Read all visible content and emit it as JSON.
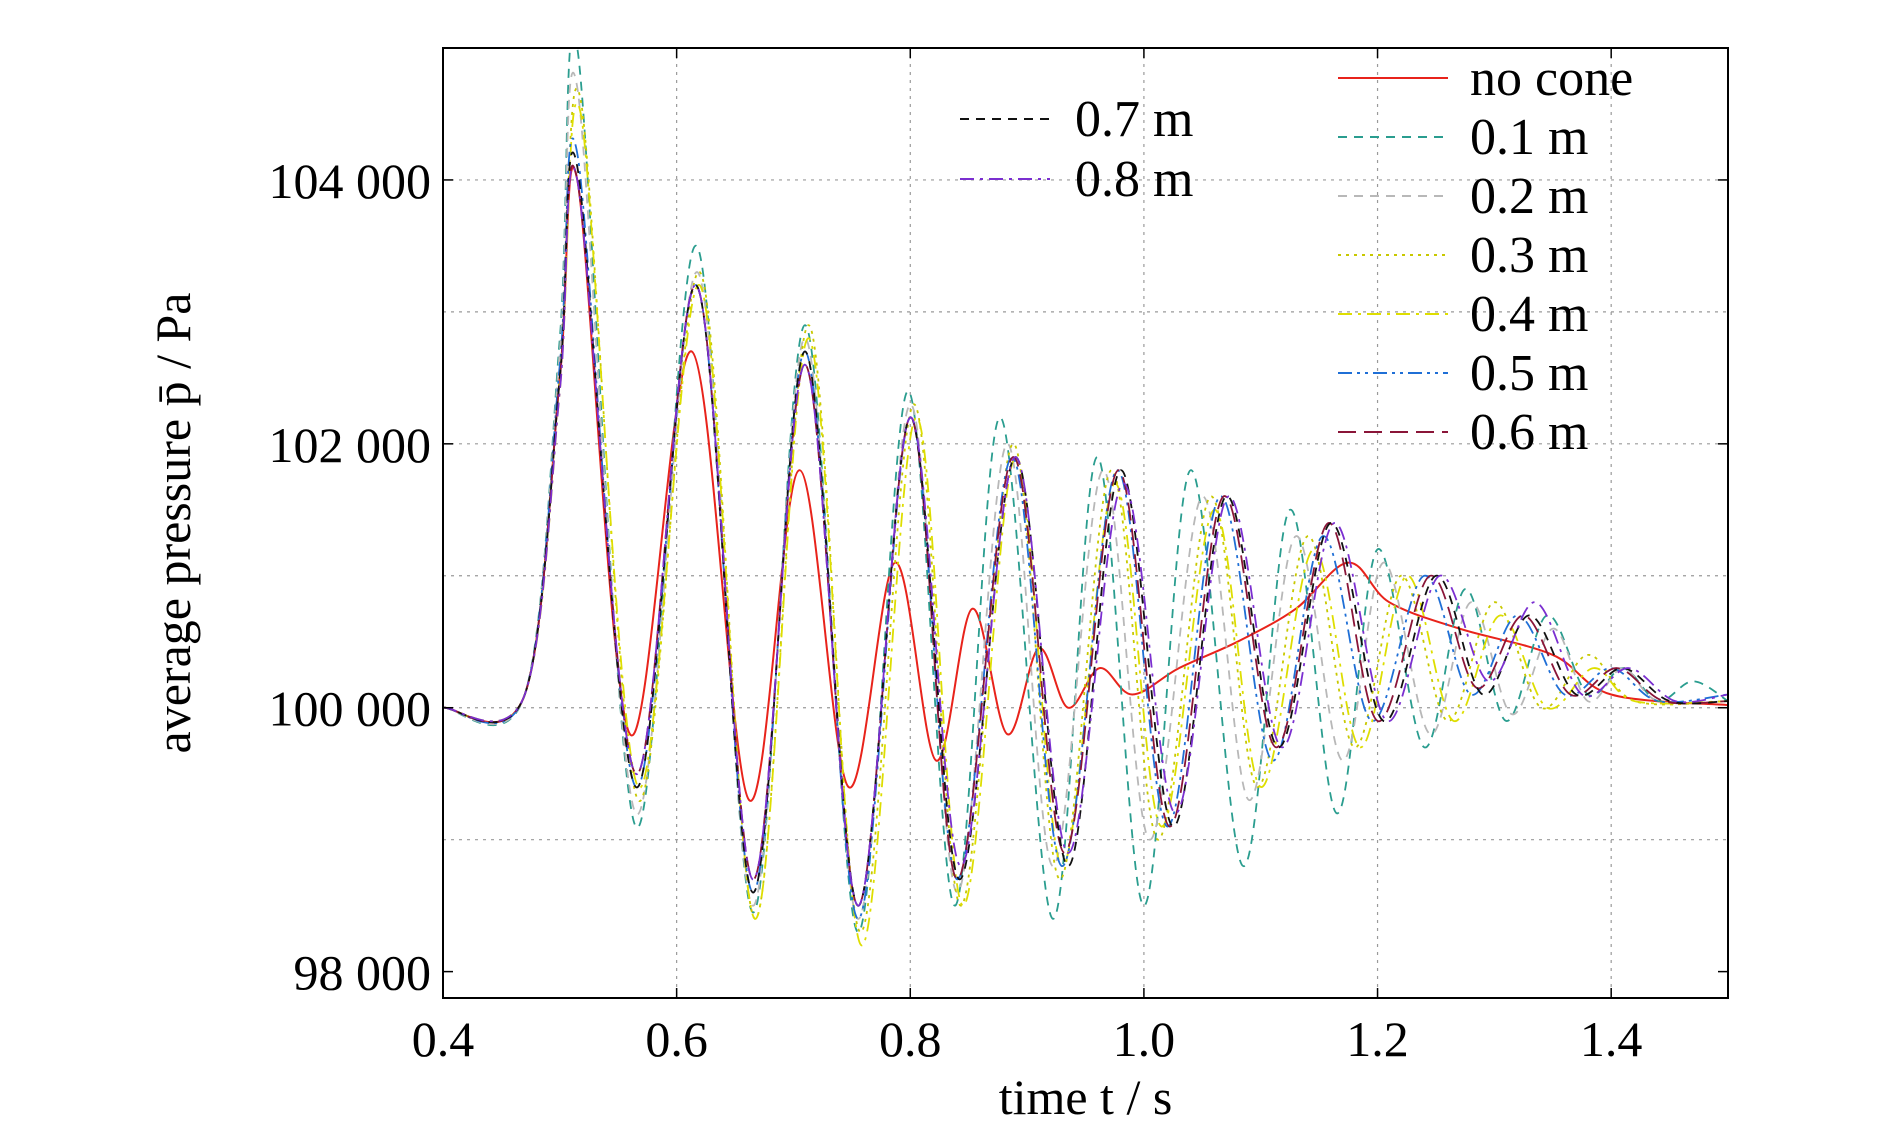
{
  "chart_data": {
    "type": "line",
    "title": "",
    "xlabel": "time t / s",
    "ylabel": "average pressure p̄ / Pa",
    "xlim": [
      0.4,
      1.5
    ],
    "ylim": [
      97800,
      105000
    ],
    "xticks": [
      0.4,
      0.6,
      0.8,
      1.0,
      1.2,
      1.4
    ],
    "xtick_labels": [
      "0.4",
      "0.6",
      "0.8",
      "1.0",
      "1.2",
      "1.4"
    ],
    "yticks": [
      98000,
      100000,
      102000,
      104000
    ],
    "ytick_labels": [
      "98 000",
      "100 000",
      "102 000",
      "104 000"
    ],
    "grid": true,
    "legend_placement": "top-right, two columns",
    "series": [
      {
        "name": "no cone",
        "color": "#e8231b",
        "dash": "solid",
        "x": [
          0.4,
          0.47,
          0.5,
          0.515,
          0.56,
          0.613,
          0.662,
          0.705,
          0.747,
          0.787,
          0.822,
          0.853,
          0.883,
          0.91,
          0.935,
          0.962,
          0.99,
          1.03,
          1.08,
          1.13,
          1.175,
          1.21,
          1.27,
          1.35,
          1.4,
          1.5
        ],
        "y": [
          100000,
          100100,
          102500,
          104000,
          99800,
          102700,
          99300,
          101800,
          99400,
          101100,
          99600,
          100750,
          99800,
          100450,
          100000,
          100300,
          100100,
          100300,
          100500,
          100750,
          101100,
          100800,
          100600,
          100400,
          100100,
          100020
        ]
      },
      {
        "name": "0.1 m",
        "color": "#2a9d8f",
        "dash": "short-dash",
        "x": [
          0.4,
          0.47,
          0.5,
          0.515,
          0.565,
          0.617,
          0.665,
          0.71,
          0.755,
          0.798,
          0.838,
          0.877,
          0.922,
          0.96,
          1.0,
          1.04,
          1.085,
          1.125,
          1.165,
          1.2,
          1.24,
          1.275,
          1.31,
          1.345,
          1.38,
          1.41,
          1.44,
          1.47,
          1.5
        ],
        "y": [
          100000,
          100100,
          102800,
          105000,
          99100,
          103500,
          98450,
          102900,
          98300,
          102400,
          98500,
          102200,
          98400,
          101900,
          98500,
          101800,
          98800,
          101500,
          99200,
          101200,
          99700,
          100900,
          99900,
          100700,
          100100,
          100300,
          100050,
          100200,
          100050
        ]
      },
      {
        "name": "0.2 m",
        "color": "#b8b8b8",
        "dash": "short-dash",
        "x": [
          0.4,
          0.47,
          0.5,
          0.515,
          0.565,
          0.618,
          0.665,
          0.71,
          0.755,
          0.8,
          0.84,
          0.883,
          0.922,
          0.965,
          1.005,
          1.05,
          1.09,
          1.13,
          1.17,
          1.205,
          1.245,
          1.28,
          1.315,
          1.35,
          1.38,
          1.41,
          1.44,
          1.5
        ],
        "y": [
          100000,
          100100,
          102700,
          104700,
          99200,
          103300,
          98500,
          102800,
          98400,
          102300,
          98600,
          102000,
          98800,
          101800,
          99000,
          101600,
          99300,
          101300,
          99600,
          101100,
          99800,
          100800,
          99950,
          100600,
          100050,
          100300,
          100050,
          100050
        ]
      },
      {
        "name": "0.3 m",
        "color": "#c8c800",
        "dash": "dotted",
        "x": [
          0.4,
          0.47,
          0.5,
          0.518,
          0.567,
          0.62,
          0.667,
          0.713,
          0.757,
          0.803,
          0.843,
          0.888,
          0.928,
          0.972,
          1.012,
          1.057,
          1.097,
          1.14,
          1.18,
          1.22,
          1.26,
          1.3,
          1.34,
          1.38,
          1.42,
          1.5
        ],
        "y": [
          100000,
          100100,
          102500,
          104600,
          99300,
          103300,
          98400,
          102900,
          98300,
          102300,
          98500,
          102000,
          98700,
          101800,
          99000,
          101600,
          99400,
          101300,
          99700,
          101000,
          99900,
          100800,
          100000,
          100400,
          100050,
          100050
        ]
      },
      {
        "name": "0.4 m",
        "color": "#dede00",
        "dash": "dash-dot",
        "x": [
          0.4,
          0.47,
          0.5,
          0.518,
          0.567,
          0.62,
          0.667,
          0.713,
          0.758,
          0.805,
          0.845,
          0.89,
          0.93,
          0.975,
          1.015,
          1.06,
          1.1,
          1.145,
          1.185,
          1.225,
          1.265,
          1.305,
          1.345,
          1.385,
          1.42,
          1.5
        ],
        "y": [
          100000,
          100100,
          102400,
          104500,
          99400,
          103200,
          98400,
          102800,
          98200,
          102200,
          98500,
          101900,
          98800,
          101700,
          99100,
          101500,
          99400,
          101200,
          99700,
          101000,
          99900,
          100700,
          100000,
          100300,
          100050,
          100050
        ]
      },
      {
        "name": "0.5 m",
        "color": "#1f6fd6",
        "dash": "dash-dot-dot",
        "x": [
          0.4,
          0.47,
          0.5,
          0.515,
          0.565,
          0.617,
          0.665,
          0.71,
          0.755,
          0.8,
          0.84,
          0.887,
          0.93,
          0.977,
          1.02,
          1.065,
          1.11,
          1.153,
          1.195,
          1.24,
          1.28,
          1.32,
          1.36,
          1.4,
          1.44,
          1.5
        ],
        "y": [
          100000,
          100100,
          102600,
          104200,
          99400,
          103200,
          98600,
          102700,
          98400,
          102200,
          98700,
          101900,
          98800,
          101800,
          99100,
          101600,
          99600,
          101300,
          99900,
          101000,
          100100,
          100700,
          100100,
          100300,
          100050,
          100100
        ]
      },
      {
        "name": "0.6 m",
        "color": "#8a1538",
        "dash": "long-dash",
        "x": [
          0.4,
          0.47,
          0.5,
          0.515,
          0.565,
          0.617,
          0.665,
          0.71,
          0.755,
          0.8,
          0.84,
          0.888,
          0.932,
          0.978,
          1.022,
          1.068,
          1.113,
          1.158,
          1.2,
          1.245,
          1.285,
          1.325,
          1.365,
          1.405,
          1.445,
          1.5
        ],
        "y": [
          100000,
          100100,
          102500,
          104000,
          99500,
          103200,
          98700,
          102600,
          98500,
          102200,
          98700,
          101900,
          98900,
          101800,
          99100,
          101600,
          99700,
          101400,
          99900,
          101000,
          100150,
          100700,
          100100,
          100300,
          100050,
          100050
        ]
      },
      {
        "name": "0.7 m",
        "color": "#111111",
        "dash": "short-dash",
        "x": [
          0.4,
          0.47,
          0.5,
          0.515,
          0.565,
          0.617,
          0.665,
          0.71,
          0.755,
          0.8,
          0.842,
          0.89,
          0.935,
          0.98,
          1.025,
          1.07,
          1.115,
          1.16,
          1.205,
          1.25,
          1.29,
          1.33,
          1.37,
          1.41,
          1.45,
          1.5
        ],
        "y": [
          100000,
          100100,
          102500,
          104100,
          99400,
          103200,
          98600,
          102700,
          98500,
          102200,
          98700,
          101900,
          98800,
          101800,
          99100,
          101600,
          99700,
          101400,
          99900,
          101000,
          100100,
          100700,
          100100,
          100300,
          100050,
          100050
        ]
      },
      {
        "name": "0.8 m",
        "color": "#7b2fd0",
        "dash": "dash-dot",
        "x": [
          0.4,
          0.47,
          0.5,
          0.515,
          0.565,
          0.617,
          0.665,
          0.71,
          0.755,
          0.8,
          0.843,
          0.89,
          0.935,
          0.982,
          1.027,
          1.072,
          1.118,
          1.163,
          1.208,
          1.253,
          1.295,
          1.335,
          1.375,
          1.415,
          1.455,
          1.5
        ],
        "y": [
          100000,
          100100,
          102400,
          104000,
          99500,
          103200,
          98700,
          102600,
          98500,
          102200,
          98800,
          101900,
          98900,
          101700,
          99200,
          101600,
          99700,
          101400,
          99900,
          101000,
          100200,
          100800,
          100100,
          100300,
          100050,
          100100
        ]
      }
    ],
    "legend": {
      "left_column": [
        "0.7 m",
        "0.8 m"
      ],
      "right_column": [
        "no cone",
        "0.1 m",
        "0.2 m",
        "0.3 m",
        "0.4 m",
        "0.5 m",
        "0.6 m"
      ]
    }
  }
}
